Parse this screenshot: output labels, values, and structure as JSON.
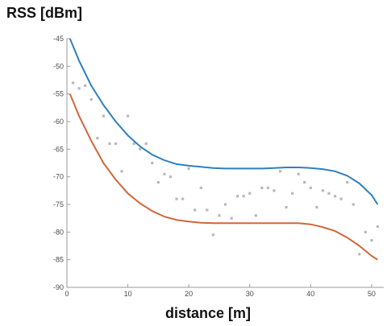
{
  "chart_data": {
    "type": "scatter",
    "xlabel": "distance [m]",
    "ylabel": "RSS [dBm]",
    "xlim": [
      0,
      52
    ],
    "ylim": [
      -90,
      -45
    ],
    "xticks": [
      0,
      10,
      20,
      30,
      40,
      50
    ],
    "yticks": [
      -45,
      -50,
      -55,
      -60,
      -65,
      -70,
      -75,
      -80,
      -85,
      -90
    ],
    "grid": false,
    "colors": {
      "upper": "#2f7fbf",
      "lower": "#d0673a",
      "points": "#b9b9b9",
      "axis": "#9a9a9a"
    },
    "series": [
      {
        "kind": "scatter",
        "x": [
          1,
          2,
          3,
          4,
          5,
          6,
          7,
          8,
          9,
          10,
          11,
          12,
          13,
          14,
          15,
          16,
          17,
          18,
          19,
          20,
          21,
          22,
          23,
          24,
          25,
          26,
          27,
          28,
          29,
          30,
          31,
          32,
          33,
          34,
          35,
          36,
          37,
          38,
          39,
          40,
          41,
          42,
          43,
          44,
          45,
          46,
          47,
          48,
          49,
          50,
          51
        ],
        "y": [
          -53,
          -54,
          -53.5,
          -56,
          -63,
          -59,
          -64,
          -64,
          -69,
          -59,
          -64,
          -65,
          -64,
          -67.5,
          -71,
          -69.5,
          -70,
          -74,
          -74,
          -68.5,
          -76,
          -72,
          -76,
          -80.5,
          -77,
          -75,
          -77.5,
          -73.5,
          -73.5,
          -73,
          -77,
          -72,
          -72,
          -72.5,
          -69,
          -75.5,
          -73,
          -69.5,
          -71,
          -72,
          -75.5,
          -72.5,
          -73,
          -73.5,
          -74,
          -71,
          -75,
          -84,
          -80,
          -81.5,
          -79
        ]
      },
      {
        "kind": "line",
        "x": [
          0.5,
          2,
          4,
          6,
          8,
          10,
          12,
          14,
          16,
          18,
          20,
          22,
          24,
          26,
          28,
          30,
          32,
          34,
          36,
          38,
          40,
          42,
          44,
          46,
          48,
          50,
          51
        ],
        "y": [
          -45,
          -49,
          -53.5,
          -57,
          -60,
          -62.5,
          -64.5,
          -66,
          -67,
          -67.7,
          -68,
          -68.2,
          -68.4,
          -68.5,
          -68.5,
          -68.5,
          -68.5,
          -68.4,
          -68.3,
          -68.3,
          -68.4,
          -68.6,
          -69,
          -69.8,
          -71.2,
          -73.3,
          -75
        ]
      },
      {
        "kind": "line",
        "x": [
          0.5,
          2,
          4,
          6,
          8,
          10,
          12,
          14,
          16,
          18,
          20,
          22,
          24,
          26,
          28,
          30,
          32,
          34,
          36,
          38,
          40,
          42,
          44,
          46,
          48,
          50,
          51
        ],
        "y": [
          -55,
          -59,
          -63.5,
          -67.5,
          -70.5,
          -73,
          -74.8,
          -76.2,
          -77.2,
          -77.8,
          -78.1,
          -78.3,
          -78.4,
          -78.4,
          -78.4,
          -78.4,
          -78.4,
          -78.4,
          -78.4,
          -78.4,
          -78.6,
          -79.1,
          -79.8,
          -81,
          -82.5,
          -84.3,
          -85
        ]
      }
    ]
  }
}
